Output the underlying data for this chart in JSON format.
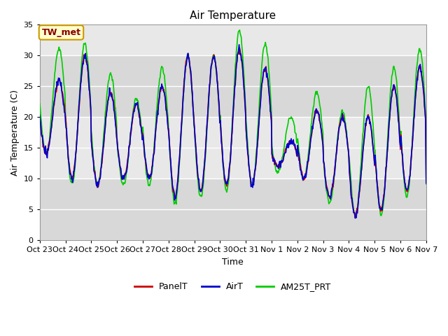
{
  "title": "Air Temperature",
  "ylabel": "Air Temperature (C)",
  "xlabel": "Time",
  "ylim": [
    0,
    35
  ],
  "yticks": [
    0,
    5,
    10,
    15,
    20,
    25,
    30,
    35
  ],
  "legend_labels": [
    "PanelT",
    "AirT",
    "AM25T_PRT"
  ],
  "legend_colors": [
    "#cc0000",
    "#0000cc",
    "#00cc00"
  ],
  "annotation_text": "TW_met",
  "annotation_bg": "#ffffcc",
  "annotation_border": "#cc9900",
  "annotation_text_color": "#880000",
  "plot_bg_light": "#e8e8e8",
  "plot_bg_dark": "#d0d0d0",
  "grid_color": "#ffffff",
  "line_width": 1.2,
  "x_tick_labels": [
    "Oct 23",
    "Oct 24",
    "Oct 25",
    "Oct 26",
    "Oct 27",
    "Oct 28",
    "Oct 29",
    "Oct 30",
    "Oct 31",
    "Nov 1",
    "Nov 2",
    "Nov 3",
    "Nov 4",
    "Nov 5",
    "Nov 6",
    "Nov 7"
  ],
  "title_fontsize": 11,
  "axis_fontsize": 9,
  "tick_fontsize": 8
}
